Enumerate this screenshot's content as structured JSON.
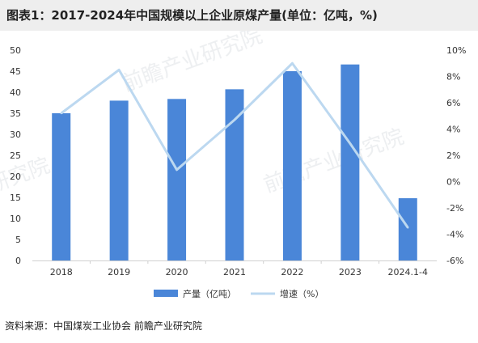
{
  "title": "图表1：2017-2024年中国规模以上企业原煤产量(单位：亿吨，%)",
  "source": "资料来源：中国煤炭工业协会 前瞻产业研究院",
  "chart_data": {
    "type": "bar",
    "categories": [
      "2018",
      "2019",
      "2020",
      "2021",
      "2022",
      "2023",
      "2024.1-4"
    ],
    "series": [
      {
        "name": "产量（亿吨）",
        "type": "bar",
        "axis": "left",
        "color": "#4a86d8",
        "values": [
          35.0,
          38.0,
          38.4,
          40.7,
          45.0,
          46.6,
          14.8
        ]
      },
      {
        "name": "增速（%）",
        "type": "line",
        "axis": "right",
        "color": "#bcd8f0",
        "values": [
          5.2,
          8.5,
          0.9,
          4.7,
          9.0,
          2.9,
          -3.5
        ]
      }
    ],
    "y_left": {
      "min": 0,
      "max": 50,
      "ticks": [
        "0",
        "5",
        "10",
        "15",
        "20",
        "25",
        "30",
        "35",
        "40",
        "45",
        "50"
      ]
    },
    "y_right": {
      "min": -6,
      "max": 10,
      "ticks": [
        "-6%",
        "-4%",
        "-2%",
        "0%",
        "2%",
        "4%",
        "6%",
        "8%",
        "10%"
      ]
    },
    "grid": false,
    "legend_position": "bottom"
  }
}
